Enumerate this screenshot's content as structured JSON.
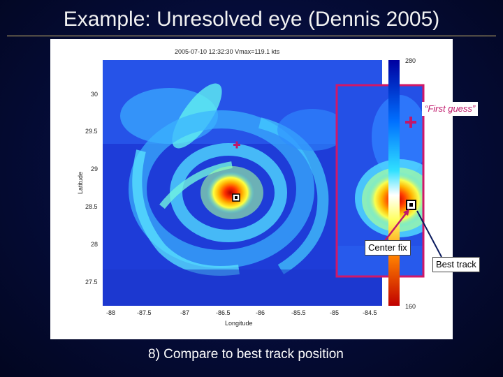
{
  "slide": {
    "title": "Example: Unresolved eye (Dennis 2005)",
    "caption": "8) Compare to best track position"
  },
  "figure": {
    "header": "2005-07-10 12:32:30   Vmax=119.1 kts",
    "xlabel": "Longitude",
    "ylabel": "Latitude",
    "xticks": [
      "-88",
      "-87.5",
      "-87",
      "-86.5",
      "-86",
      "-85.5",
      "-85",
      "-84.5"
    ],
    "yticks": [
      "30",
      "29.5",
      "29",
      "28.5",
      "28",
      "27.5"
    ],
    "colorbar_max": "280",
    "colorbar_min": "160"
  },
  "annotations": {
    "first_guess": "“First guess”",
    "center_fix": "Center fix",
    "best_track": "Best track"
  },
  "colors": {
    "marker": "#c0186a",
    "inset_border": "#d01868",
    "colormap_low": "#0000aa",
    "colormap_high": "#cc0000"
  }
}
